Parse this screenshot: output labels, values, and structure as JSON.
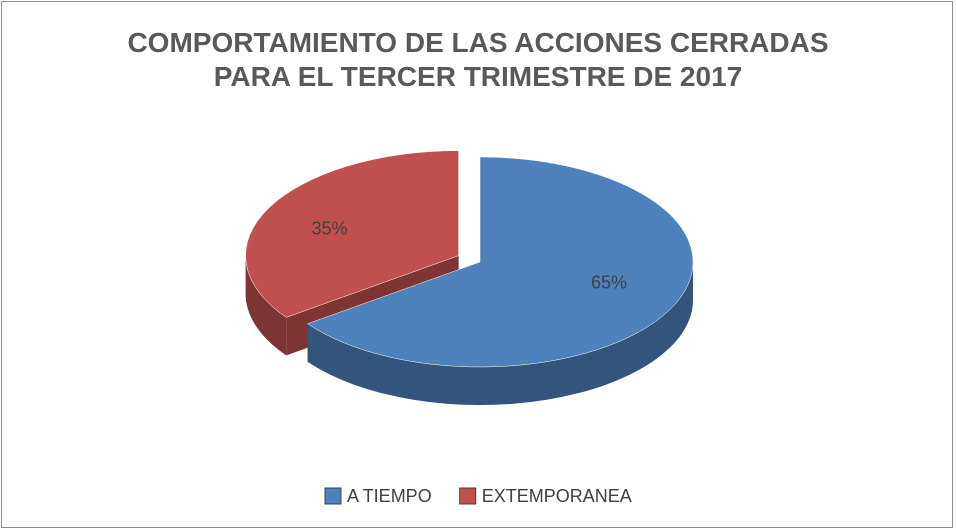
{
  "chart_data": {
    "type": "pie3d",
    "title": "COMPORTAMIENTO DE LAS ACCIONES CERRADAS PARA EL TERCER TRIMESTRE DE 2017",
    "categories": [
      "A TIEMPO",
      "EXTEMPORANEA"
    ],
    "values": [
      65,
      35
    ],
    "value_labels": [
      "65%",
      "35%"
    ],
    "colors": [
      "#4f81bd",
      "#c0504d"
    ],
    "legend": "bottom"
  }
}
